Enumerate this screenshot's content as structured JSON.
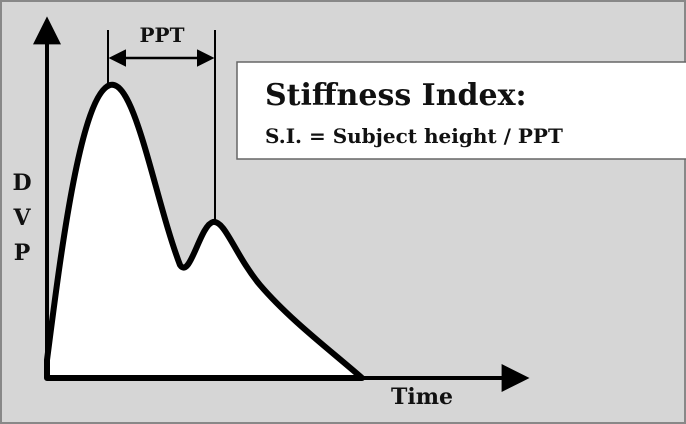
{
  "title": "Stiffness Index:",
  "formula": "S.I. = Subject height / PPT",
  "interval_label": "PPT",
  "y_axis_label": [
    "D",
    "V",
    "P"
  ],
  "x_axis_label": "Time"
}
